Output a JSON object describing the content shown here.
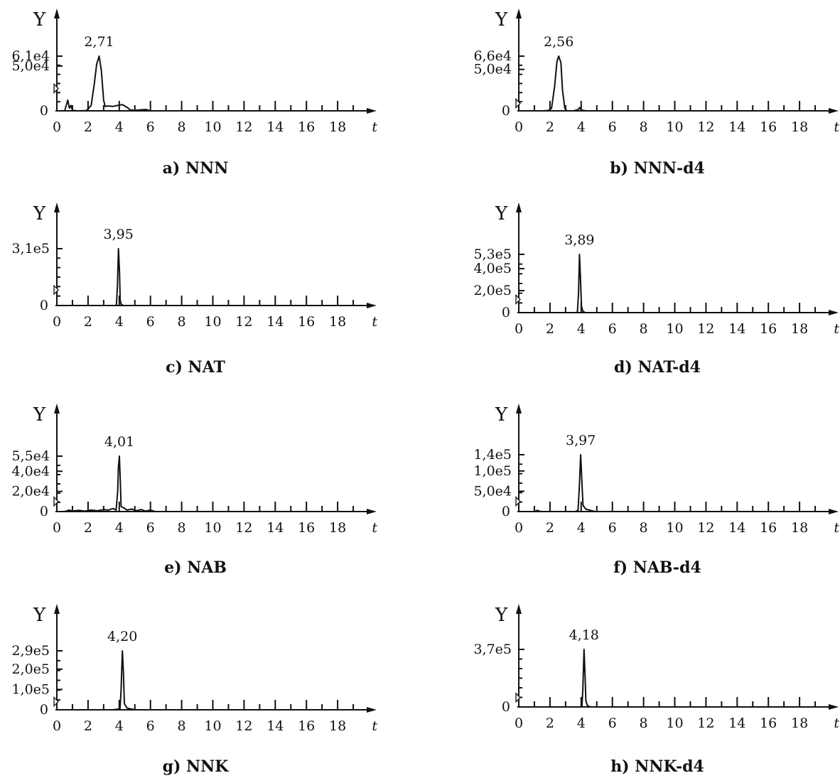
{
  "chart_data": [
    {
      "id": "a",
      "type": "line",
      "title": "a) NNN",
      "ylabel": "Y",
      "xlabel": "t",
      "xlim": [
        0,
        20
      ],
      "ylim": [
        0,
        61000
      ],
      "x_ticks": [
        0,
        2,
        4,
        6,
        8,
        10,
        12,
        14,
        16,
        18
      ],
      "y_ticks": [
        {
          "value": 61000,
          "label": "6,1e4"
        },
        {
          "value": 50000,
          "label": "5,0e4"
        }
      ],
      "y_zero_label": "0",
      "peak": {
        "x": 2.71,
        "y": 61000,
        "label": "2,71"
      },
      "marker_y": 25000,
      "series": [
        {
          "x": [
            0.5,
            0.7,
            0.8,
            0.9,
            1.0,
            1.4,
            1.9,
            2.2,
            2.4,
            2.55,
            2.71,
            2.85,
            3.0,
            3.1,
            3.3,
            3.6,
            3.9,
            4.2,
            4.5,
            4.7,
            5.0,
            5.3,
            5.7,
            6.0,
            7.0,
            20.0
          ],
          "y": [
            0,
            12000,
            3000,
            6000,
            500,
            0,
            300,
            6000,
            30000,
            52000,
            61000,
            45000,
            12000,
            5000,
            5500,
            5000,
            6000,
            7000,
            4000,
            1000,
            500,
            1000,
            1500,
            0,
            0,
            0
          ]
        }
      ]
    },
    {
      "id": "b",
      "type": "line",
      "title": "b) NNN-d4",
      "ylabel": "Y",
      "xlabel": "t",
      "xlim": [
        0,
        20
      ],
      "ylim": [
        0,
        66000
      ],
      "x_ticks": [
        0,
        2,
        4,
        6,
        8,
        10,
        12,
        14,
        16,
        18
      ],
      "y_ticks": [
        {
          "value": 66000,
          "label": "6,6e4"
        },
        {
          "value": 50000,
          "label": "5,0e4"
        }
      ],
      "y_zero_label": "0",
      "peak": {
        "x": 2.56,
        "y": 66000,
        "label": "2,56"
      },
      "marker_y": 9000,
      "series": [
        {
          "x": [
            0.0,
            1.0,
            1.6,
            1.9,
            2.1,
            2.3,
            2.45,
            2.56,
            2.7,
            2.8,
            2.95,
            3.1,
            3.5,
            3.8,
            3.9,
            4.0,
            4.3,
            5.0,
            6.0,
            20.0
          ],
          "y": [
            0,
            0,
            0,
            500,
            3000,
            30000,
            60000,
            66000,
            58000,
            25000,
            3000,
            0,
            0,
            1500,
            4000,
            1000,
            0,
            0,
            0,
            0
          ]
        }
      ]
    },
    {
      "id": "c",
      "type": "line",
      "title": "c) NAT",
      "ylabel": "Y",
      "xlabel": "t",
      "xlim": [
        0,
        20
      ],
      "ylim": [
        0,
        310000
      ],
      "x_ticks": [
        0,
        2,
        4,
        6,
        8,
        10,
        12,
        14,
        16,
        18
      ],
      "y_ticks": [
        {
          "value": 310000,
          "label": "3,1e5"
        }
      ],
      "y_zero_label": "0",
      "peak": {
        "x": 3.95,
        "y": 310000,
        "label": "3,95"
      },
      "marker_y": 85000,
      "series": [
        {
          "x": [
            0.0,
            3.7,
            3.82,
            3.88,
            3.95,
            4.02,
            4.06,
            4.12,
            4.25,
            20.0
          ],
          "y": [
            0,
            0,
            2000,
            100000,
            310000,
            180000,
            30000,
            8000,
            0,
            0
          ]
        }
      ]
    },
    {
      "id": "d",
      "type": "line",
      "title": "d) NAT-d4",
      "ylabel": "Y",
      "xlabel": "t",
      "xlim": [
        0,
        20
      ],
      "ylim": [
        0,
        530000
      ],
      "x_ticks": [
        0,
        2,
        4,
        6,
        8,
        10,
        12,
        14,
        16,
        18
      ],
      "y_ticks": [
        {
          "value": 530000,
          "label": "5,3e5"
        },
        {
          "value": 400000,
          "label": "4,0e5"
        },
        {
          "value": 200000,
          "label": "2,0e5"
        }
      ],
      "y_zero_label": "0",
      "peak": {
        "x": 3.89,
        "y": 530000,
        "label": "3,89"
      },
      "marker_y": 120000,
      "series": [
        {
          "x": [
            0.0,
            3.65,
            3.76,
            3.83,
            3.89,
            3.96,
            4.02,
            4.1,
            4.25,
            20.0
          ],
          "y": [
            0,
            0,
            5000,
            180000,
            530000,
            300000,
            60000,
            15000,
            0,
            0
          ]
        }
      ]
    },
    {
      "id": "e",
      "type": "line",
      "title": "e) NAB",
      "ylabel": "Y",
      "xlabel": "t",
      "xlim": [
        0,
        20
      ],
      "ylim": [
        0,
        55000
      ],
      "x_ticks": [
        0,
        2,
        4,
        6,
        8,
        10,
        12,
        14,
        16,
        18
      ],
      "y_ticks": [
        {
          "value": 55000,
          "label": "5,5e4"
        },
        {
          "value": 40000,
          "label": "4,0e4"
        },
        {
          "value": 20000,
          "label": "2,0e4"
        }
      ],
      "y_zero_label": "0",
      "peak": {
        "x": 4.01,
        "y": 55000,
        "label": "4,01"
      },
      "marker_y": 10000,
      "series": [
        {
          "x": [
            0.5,
            0.8,
            1.0,
            1.4,
            1.8,
            2.2,
            2.6,
            3.0,
            3.3,
            3.6,
            3.8,
            3.9,
            3.95,
            4.01,
            4.07,
            4.12,
            4.3,
            4.5,
            4.8,
            5.1,
            5.4,
            5.7,
            6.0,
            6.3,
            20.0
          ],
          "y": [
            0,
            1500,
            500,
            1200,
            400,
            1500,
            800,
            2000,
            1500,
            3000,
            1500,
            20000,
            45000,
            55000,
            30000,
            5000,
            3500,
            1500,
            2500,
            800,
            2000,
            500,
            1500,
            0,
            0
          ]
        }
      ]
    },
    {
      "id": "f",
      "type": "line",
      "title": "f) NAB-d4",
      "ylabel": "Y",
      "xlabel": "t",
      "xlim": [
        0,
        20
      ],
      "ylim": [
        0,
        140000
      ],
      "x_ticks": [
        0,
        2,
        4,
        6,
        8,
        10,
        12,
        14,
        16,
        18
      ],
      "y_ticks": [
        {
          "value": 140000,
          "label": "1,4e5"
        },
        {
          "value": 100000,
          "label": "1,0e5"
        },
        {
          "value": 50000,
          "label": "5,0e4"
        }
      ],
      "y_zero_label": "0",
      "peak": {
        "x": 3.97,
        "y": 140000,
        "label": "3,97"
      },
      "marker_y": 25000,
      "series": [
        {
          "x": [
            0.0,
            1.0,
            1.2,
            1.4,
            1.6,
            3.6,
            3.8,
            3.88,
            3.97,
            4.05,
            4.12,
            4.3,
            4.6,
            4.9,
            20.0
          ],
          "y": [
            0,
            0,
            3000,
            0,
            0,
            0,
            3000,
            60000,
            140000,
            70000,
            15000,
            6000,
            3000,
            0,
            0
          ]
        }
      ]
    },
    {
      "id": "g",
      "type": "line",
      "title": "g) NNK",
      "ylabel": "Y",
      "xlabel": "t",
      "xlim": [
        0,
        20
      ],
      "ylim": [
        0,
        290000
      ],
      "x_ticks": [
        0,
        2,
        4,
        6,
        8,
        10,
        12,
        14,
        16,
        18
      ],
      "y_ticks": [
        {
          "value": 290000,
          "label": "2,9e5"
        },
        {
          "value": 200000,
          "label": "2,0e5"
        },
        {
          "value": 100000,
          "label": "1,0e5"
        }
      ],
      "y_zero_label": "0",
      "peak": {
        "x": 4.2,
        "y": 290000,
        "label": "4,20"
      },
      "marker_y": 40000,
      "series": [
        {
          "x": [
            0.0,
            3.6,
            3.9,
            4.05,
            4.12,
            4.2,
            4.27,
            4.33,
            4.5,
            5.0,
            20.0
          ],
          "y": [
            0,
            0,
            3000,
            6000,
            100000,
            290000,
            180000,
            30000,
            8000,
            0,
            0
          ]
        }
      ]
    },
    {
      "id": "h",
      "type": "line",
      "title": "h) NNK-d4",
      "ylabel": "Y",
      "xlabel": "t",
      "xlim": [
        0,
        20
      ],
      "ylim": [
        0,
        370000
      ],
      "x_ticks": [
        0,
        2,
        4,
        6,
        8,
        10,
        12,
        14,
        16,
        18
      ],
      "y_ticks": [
        {
          "value": 370000,
          "label": "3,7e5"
        }
      ],
      "y_zero_label": "0",
      "peak": {
        "x": 4.18,
        "y": 370000,
        "label": "4,18"
      },
      "marker_y": 60000,
      "series": [
        {
          "x": [
            0.0,
            3.9,
            4.05,
            4.11,
            4.18,
            4.25,
            4.3,
            4.4,
            4.6,
            20.0
          ],
          "y": [
            0,
            0,
            3000,
            120000,
            370000,
            200000,
            40000,
            8000,
            0,
            0
          ]
        }
      ]
    }
  ]
}
